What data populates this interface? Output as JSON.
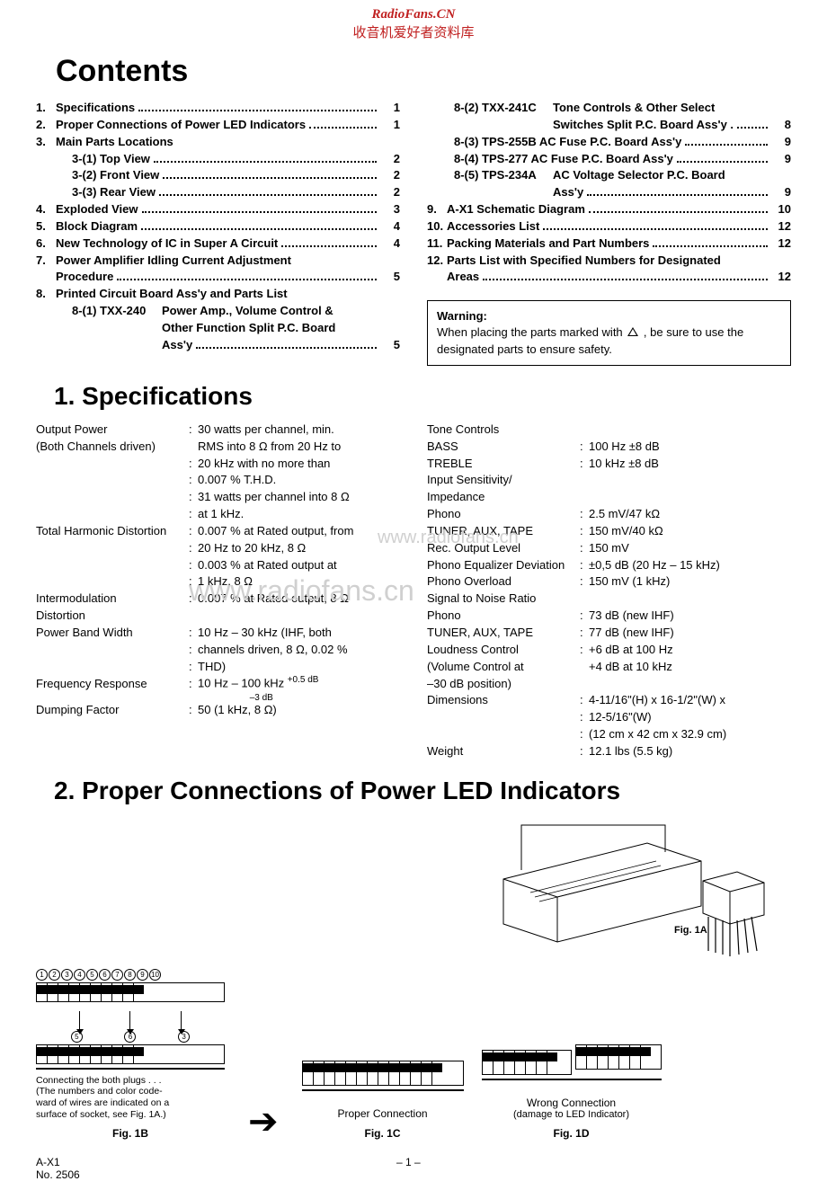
{
  "banner": {
    "line1": "RadioFans.CN",
    "line2": "收音机爱好者资料库"
  },
  "contentsTitle": "Contents",
  "toc": {
    "left": [
      {
        "num": "1.",
        "label": "Specifications",
        "page": "1"
      },
      {
        "num": "2.",
        "label": "Proper Connections of Power LED Indicators",
        "page": "1"
      },
      {
        "num": "3.",
        "label": "Main Parts Locations"
      },
      {
        "sub": "3-(1) Top View",
        "page": "2"
      },
      {
        "sub": "3-(2) Front View",
        "page": "2"
      },
      {
        "sub": "3-(3) Rear View",
        "page": "2"
      },
      {
        "num": "4.",
        "label": "Exploded View",
        "page": "3"
      },
      {
        "num": "5.",
        "label": "Block Diagram",
        "page": "4"
      },
      {
        "num": "6.",
        "label": "New Technology of IC in Super A Circuit",
        "page": "4"
      },
      {
        "num": "7.",
        "label": "Power Amplifier Idling Current Adjustment"
      },
      {
        "cont": "Procedure",
        "page": "5"
      },
      {
        "num": "8.",
        "label": "Printed Circuit Board Ass'y and Parts List"
      },
      {
        "sub81a": "8-(1) TXX-240",
        "sub81b": "Power Amp., Volume Control &"
      },
      {
        "sub81c": "Other Function Split P.C. Board"
      },
      {
        "sub81d": "Ass'y",
        "page": "5"
      }
    ],
    "right": [
      {
        "sub82a": "8-(2) TXX-241C",
        "sub82b": "Tone Controls & Other Select"
      },
      {
        "sub82c": "Switches Split P.C. Board Ass'y .",
        "page": "8"
      },
      {
        "sub83": "8-(3) TPS-255B   AC Fuse P.C. Board Ass'y",
        "page": "9"
      },
      {
        "sub84": "8-(4) TPS-277     AC Fuse P.C. Board Ass'y",
        "page": "9"
      },
      {
        "sub85a": "8-(5) TPS-234A",
        "sub85b": "AC Voltage Selector P.C. Board"
      },
      {
        "sub85c": "Ass'y",
        "page": "9"
      },
      {
        "num": "9.",
        "label": "A-X1 Schematic Diagram",
        "page": "10"
      },
      {
        "num": "10.",
        "label": "Accessories List",
        "page": "12"
      },
      {
        "num": "11.",
        "label": "Packing Materials and Part Numbers",
        "page": "12"
      },
      {
        "num": "12.",
        "label": "Parts List with Specified Numbers for Designated"
      },
      {
        "cont": "Areas",
        "page": "12"
      }
    ]
  },
  "warning": {
    "title": "Warning:",
    "body1": "When placing the parts marked with ",
    "body2": " , be sure to use the designated parts to ensure safety."
  },
  "sec1Title": "1.  Specifications",
  "specLeft": [
    {
      "label": "Output Power",
      "val": "30 watts per channel, min."
    },
    {
      "label": "(Both Channels driven)",
      "val": "RMS into 8 Ω from 20 Hz to",
      "nosep": true
    },
    {
      "label": "",
      "val": "20 kHz with no more than"
    },
    {
      "label": "",
      "val": "0.007 % T.H.D."
    },
    {
      "label": "",
      "val": "31 watts per channel into 8 Ω"
    },
    {
      "label": "",
      "val": "at 1 kHz."
    },
    {
      "label": "Total Harmonic Distortion",
      "val": "0.007 % at Rated output, from"
    },
    {
      "label": "",
      "val": "20 Hz to 20 kHz, 8 Ω"
    },
    {
      "label": "",
      "val": "0.003 % at Rated output at"
    },
    {
      "label": "",
      "val": "1 kHz, 8 Ω"
    },
    {
      "label": "Intermodulation",
      "val": "0.007 % at Rated output, 8 Ω"
    },
    {
      "label": "  Distortion",
      "val": "",
      "nosep": true
    },
    {
      "label": "Power Band Width",
      "val": "10 Hz – 30 kHz (IHF, both"
    },
    {
      "label": "",
      "val": "channels driven, 8 Ω, 0.02 %"
    },
    {
      "label": "",
      "val": "THD)"
    },
    {
      "label": "Frequency Response",
      "val": "10 Hz – 100 kHz ",
      "frac": true
    },
    {
      "label": "Dumping Factor",
      "val": "50 (1 kHz, 8 Ω)"
    }
  ],
  "specRight": [
    {
      "label": "Tone Controls",
      "val": "",
      "nosep": true
    },
    {
      "label": "  BASS",
      "val": "100 Hz ±8 dB",
      "indent": true
    },
    {
      "label": "  TREBLE",
      "val": "10 kHz ±8 dB",
      "indent": true
    },
    {
      "label": "Input Sensitivity/",
      "val": "",
      "nosep": true
    },
    {
      "label": "  Impedance",
      "val": "",
      "nosep": true
    },
    {
      "label": "  Phono",
      "val": "2.5 mV/47 kΩ",
      "indent": true
    },
    {
      "label": "  TUNER, AUX, TAPE",
      "val": "150 mV/40 kΩ",
      "indent": true
    },
    {
      "label": "Rec. Output Level",
      "val": "150 mV"
    },
    {
      "label": "Phono Equalizer Deviation",
      "val": "±0,5 dB (20 Hz – 15 kHz)"
    },
    {
      "label": "Phono Overload",
      "val": "150 mV (1 kHz)"
    },
    {
      "label": "Signal to Noise Ratio",
      "val": "",
      "nosep": true
    },
    {
      "label": "  Phono",
      "val": "73 dB (new IHF)",
      "indent": true
    },
    {
      "label": "  TUNER, AUX, TAPE",
      "val": "77 dB (new IHF)",
      "indent": true
    },
    {
      "label": "Loudness Control",
      "val": "+6 dB at 100 Hz"
    },
    {
      "label": "  (Volume Control at",
      "val": "+4 dB at 10 kHz",
      "nosep": true
    },
    {
      "label": "  –30 dB position)",
      "val": "",
      "nosep": true
    },
    {
      "label": "Dimensions",
      "val": "4-11/16\"(H) x 16-1/2\"(W) x"
    },
    {
      "label": "",
      "val": "12-5/16\"(W)"
    },
    {
      "label": "",
      "val": "(12 cm x 42 cm x 32.9 cm)"
    },
    {
      "label": "Weight",
      "val": "12.1 lbs (5.5 kg)"
    }
  ],
  "sec2Title": "2.  Proper Connections of Power LED Indicators",
  "figs": {
    "b": {
      "note": "Connecting the both plugs . . .\n(The numbers and color code-\nward of wires are indicated on a\nsurface of socket, see Fig. 1A.)",
      "cap": "Fig. 1B",
      "nums": [
        "1",
        "2",
        "3",
        "4",
        "5",
        "6",
        "7",
        "8",
        "9",
        "10"
      ],
      "arrowNums": [
        "5",
        "6",
        "3"
      ]
    },
    "c": {
      "title": "Proper Connection",
      "cap": "Fig. 1C"
    },
    "d": {
      "title": "Wrong Connection",
      "sub": "(damage to LED Indicator)",
      "cap": "Fig. 1D"
    },
    "a": {
      "cap": "Fig. 1A"
    }
  },
  "watermark": {
    "t1": "www.radiofans.cn",
    "t2": "www.radiofans.cn"
  },
  "footer": {
    "left1": "A-X1",
    "left2": "No. 2506",
    "center": "– 1 –"
  },
  "fracTop": "+0.5 dB",
  "fracBot": "–3 dB"
}
